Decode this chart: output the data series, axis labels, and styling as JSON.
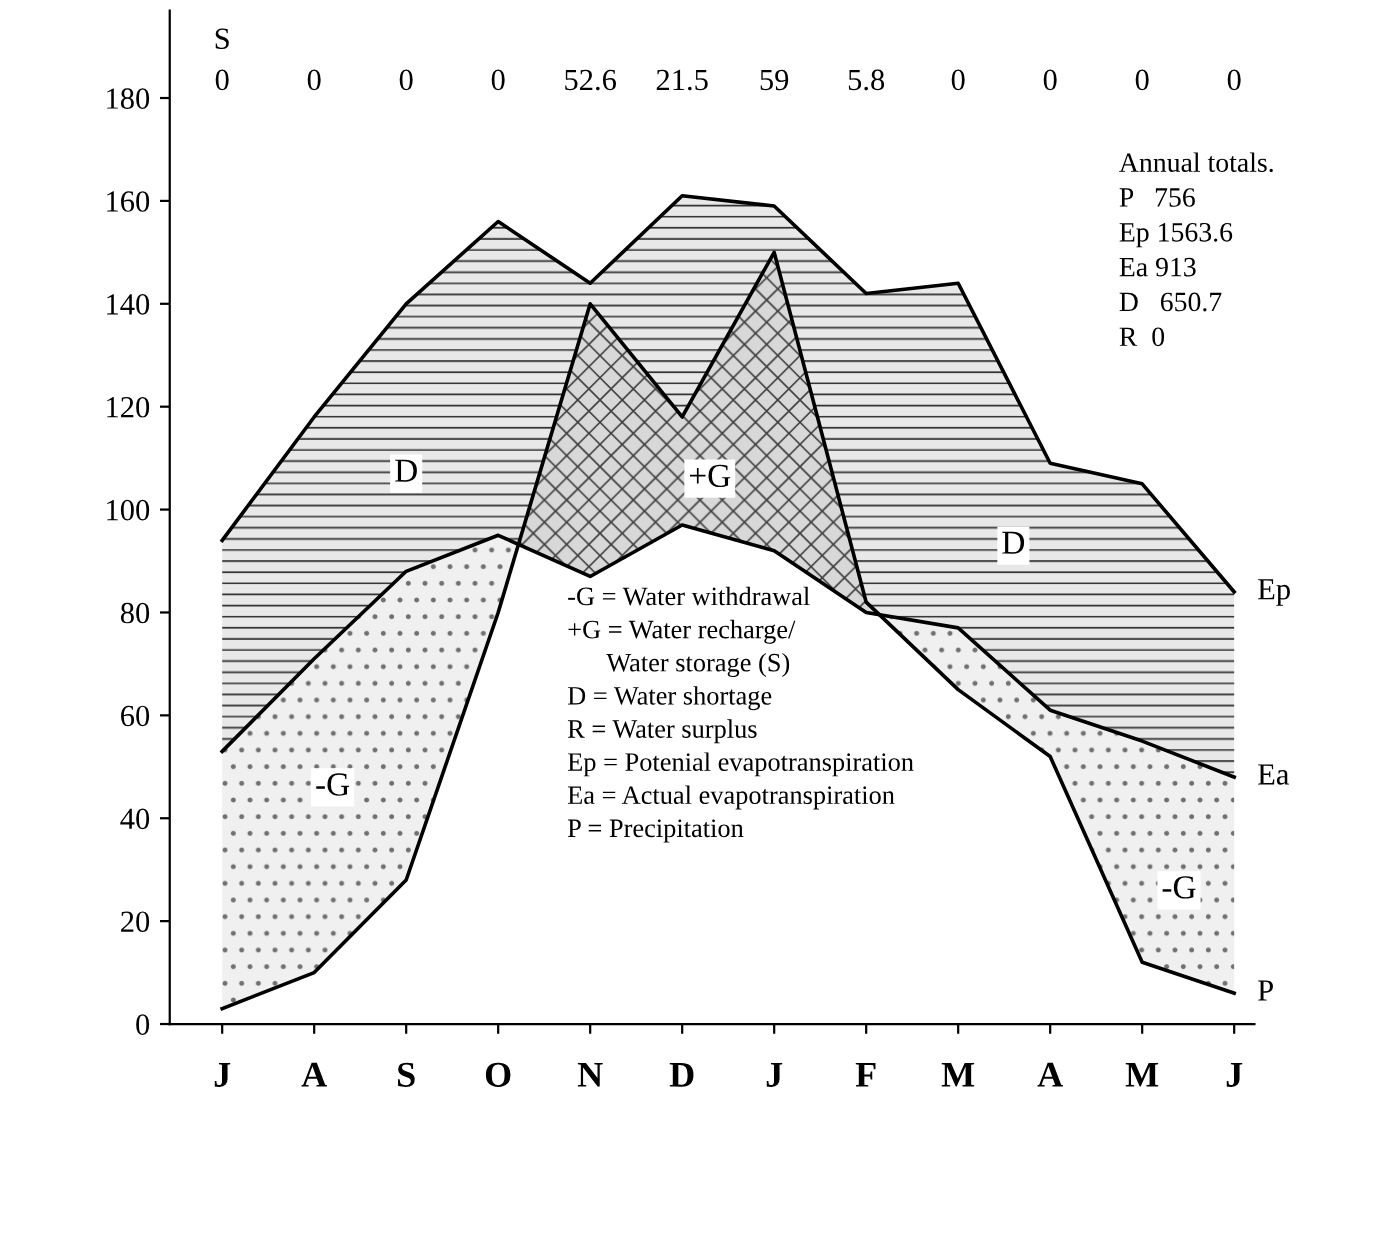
{
  "chart_data": {
    "type": "line",
    "categories": [
      "J",
      "A",
      "S",
      "O",
      "N",
      "D",
      "J",
      "F",
      "M",
      "A",
      "M",
      "J"
    ],
    "ylim": [
      0,
      197
    ],
    "yticks": [
      0,
      20,
      40,
      60,
      80,
      100,
      120,
      140,
      160,
      180
    ],
    "series": [
      {
        "name": "Ep",
        "color": "#000000",
        "values": [
          94,
          118,
          140,
          156,
          144,
          161,
          159,
          142,
          144,
          109,
          105,
          84
        ]
      },
      {
        "name": "Ea",
        "color": "#000000",
        "values": [
          53,
          71,
          88,
          95,
          87,
          97,
          92,
          80,
          77,
          61,
          55,
          48
        ]
      },
      {
        "name": "P",
        "color": "#000000",
        "values": [
          3,
          10,
          28,
          80,
          140,
          118,
          150,
          82,
          65,
          52,
          12,
          6
        ]
      }
    ],
    "grid": false,
    "legend": false,
    "annotations": [
      "-G = Water withdrawal\n+G = Water recharge/\n      Water storage (S)\nD = Water shortage\nR = Water surplus\nEp = Potenial evapotranspiration\nEa = Actual evapotranspiration\nP = Precipitation",
      "Annual totals.\nP   756\nEp 1563.6\nEa 913\nD   650.7\nR  0",
      "S",
      "0",
      "0",
      "0",
      "0",
      "52.6",
      "21.5",
      "59",
      "5.8",
      "0",
      "0",
      "0",
      "0",
      "D",
      "+G",
      "D",
      "-G",
      "-G"
    ]
  }
}
